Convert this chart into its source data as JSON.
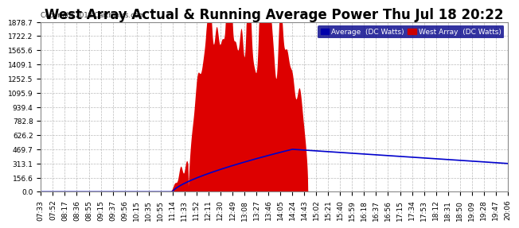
{
  "title": "West Array Actual & Running Average Power Thu Jul 18 20:22",
  "copyright": "Copyright 2019 Cartronics.com",
  "legend_labels": [
    "Average  (DC Watts)",
    "West Array  (DC Watts)"
  ],
  "yticks": [
    0.0,
    156.6,
    313.1,
    469.7,
    626.2,
    782.8,
    939.4,
    1095.9,
    1252.5,
    1409.1,
    1565.6,
    1722.2,
    1878.7
  ],
  "ymax": 1878.7,
  "bg_color": "#ffffff",
  "plot_bg": "#ffffff",
  "grid_color": "#aaaaaa",
  "x_labels": [
    "07:33",
    "07:52",
    "08:17",
    "08:36",
    "08:55",
    "09:15",
    "09:37",
    "09:56",
    "10:15",
    "10:35",
    "10:55",
    "11:14",
    "11:33",
    "11:52",
    "12:11",
    "12:30",
    "12:49",
    "13:08",
    "13:27",
    "13:46",
    "14:05",
    "14:24",
    "14:43",
    "15:02",
    "15:21",
    "15:40",
    "15:59",
    "16:18",
    "16:37",
    "16:56",
    "17:15",
    "17:34",
    "17:53",
    "18:12",
    "18:31",
    "18:50",
    "19:09",
    "19:28",
    "19:47",
    "20:06"
  ],
  "title_fontsize": 12,
  "tick_fontsize": 6.5,
  "label_color": "#000000",
  "title_color": "#000000"
}
